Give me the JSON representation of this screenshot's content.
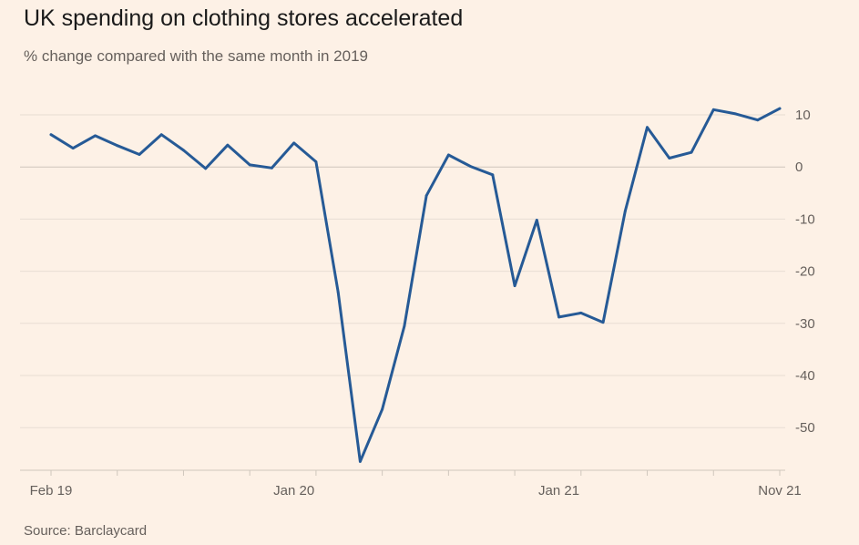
{
  "title": "UK spending on clothing stores accelerated",
  "subtitle": "% change compared with the same month in 2019",
  "source": "Source: Barclaycard",
  "colors": {
    "line": "#265a96",
    "grid": "#e8ddd3",
    "zero": "#cfc6bc",
    "background": "#fdf1e6",
    "text": "#66605c"
  },
  "chart_data": {
    "type": "line",
    "title": "UK spending on clothing stores accelerated",
    "subtitle": "% change compared with the same month in 2019",
    "xlabel": "",
    "ylabel": "",
    "x": [
      "Feb 19",
      "Mar 19",
      "Apr 19",
      "May 19",
      "Jun 19",
      "Jul 19",
      "Aug 19",
      "Sep 19",
      "Oct 19",
      "Nov 19",
      "Dec 19",
      "Jan 20",
      "Feb 20",
      "Mar 20",
      "Apr 20",
      "May 20",
      "Jun 20",
      "Jul 20",
      "Aug 20",
      "Sep 20",
      "Oct 20",
      "Nov 20",
      "Dec 20",
      "Jan 21",
      "Feb 21",
      "Mar 21",
      "Apr 21",
      "May 21",
      "Jun 21",
      "Jul 21",
      "Aug 21",
      "Sep 21",
      "Oct 21",
      "Nov 21"
    ],
    "series": [
      {
        "values": [
          6.2,
          3.6,
          6.0,
          4.1,
          2.4,
          6.2,
          3.2,
          -0.3,
          4.2,
          0.4,
          -0.2,
          4.6,
          1.0,
          -24.0,
          -56.5,
          -46.5,
          -30.5,
          -5.5,
          2.3,
          0.1,
          -1.5,
          -22.8,
          -10.2,
          -28.8,
          -28.0,
          -29.8,
          -8.5,
          7.6,
          1.7,
          2.8,
          11.0,
          10.2,
          9.0,
          11.2
        ]
      }
    ],
    "x_tick_labels": [
      "Feb 19",
      "Jan 20",
      "Jan 21",
      "Nov 21"
    ],
    "y_ticks": [
      10,
      0,
      -10,
      -20,
      -30,
      -40,
      -50
    ],
    "ylim": [
      -57.5,
      12
    ],
    "y_axis_position": "right",
    "grid": true
  }
}
